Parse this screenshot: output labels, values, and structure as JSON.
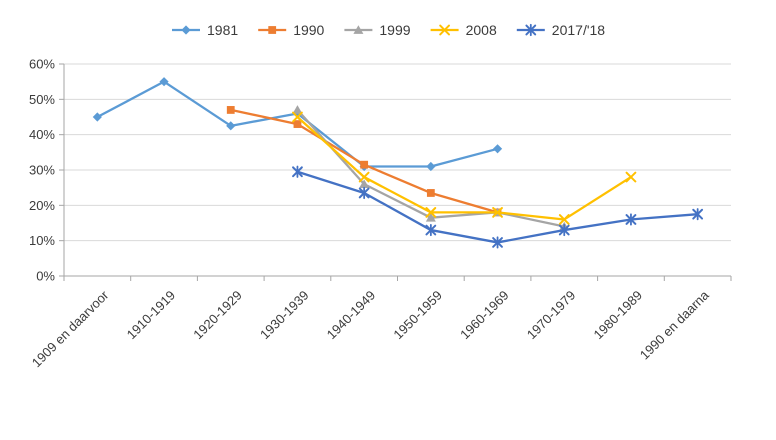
{
  "chart_data": {
    "type": "line",
    "title": "",
    "xlabel": "",
    "ylabel": "",
    "categories": [
      "1909 en daarvoor",
      "1910-1919",
      "1920-1929",
      "1930-1939",
      "1940-1949",
      "1950-1959",
      "1960-1969",
      "1970-1979",
      "1980-1989",
      "1990 en daarna"
    ],
    "series": [
      {
        "name": "1981",
        "color": "#5B9BD5",
        "marker": "diamond",
        "values": [
          45,
          55,
          42.5,
          46,
          31,
          31,
          36,
          null,
          null,
          null
        ]
      },
      {
        "name": "1990",
        "color": "#ED7D31",
        "marker": "square",
        "values": [
          null,
          null,
          47,
          43,
          31.5,
          23.5,
          18,
          null,
          null,
          null
        ]
      },
      {
        "name": "1999",
        "color": "#A5A5A5",
        "marker": "triangle",
        "values": [
          null,
          null,
          null,
          47,
          26,
          16.5,
          18,
          14,
          null,
          null
        ]
      },
      {
        "name": "2008",
        "color": "#FFC000",
        "marker": "x",
        "values": [
          null,
          null,
          null,
          45,
          28,
          18,
          18,
          16,
          28,
          null
        ]
      },
      {
        "name": "2017/'18",
        "color": "#4472C4",
        "marker": "asterisk",
        "values": [
          null,
          null,
          null,
          29.5,
          23.5,
          13,
          9.5,
          13,
          16,
          17.5
        ]
      }
    ],
    "ylim": [
      0,
      60
    ],
    "ytick_step": 10,
    "ytick_labels": [
      "0%",
      "10%",
      "20%",
      "30%",
      "40%",
      "50%",
      "60%"
    ],
    "grid": "horizontal",
    "legend_position": "top-center"
  },
  "colors": {
    "background": "#FFFFFF",
    "gridline": "#D9D9D9",
    "axis": "#A6A6A6",
    "label_text": "#3B3B3B"
  }
}
